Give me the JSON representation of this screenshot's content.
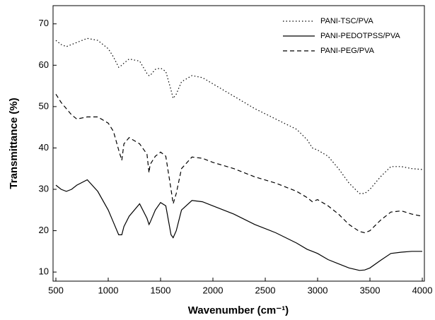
{
  "chart_data": {
    "type": "line",
    "x_label": "Wavenumber (cm⁻¹)",
    "y_label": "Transmittance (%)",
    "x": [
      500,
      550,
      600,
      650,
      700,
      800,
      900,
      1000,
      1050,
      1100,
      1130,
      1150,
      1200,
      1300,
      1370,
      1390,
      1400,
      1450,
      1500,
      1550,
      1600,
      1620,
      1650,
      1700,
      1800,
      1900,
      2000,
      2200,
      2400,
      2600,
      2800,
      2900,
      2950,
      3000,
      3100,
      3200,
      3300,
      3400,
      3450,
      3500,
      3600,
      3700,
      3800,
      3900,
      4000
    ],
    "series": [
      {
        "name": "PANI-TSC/PVA",
        "color": "#000000",
        "dash": "dotted",
        "values": [
          66,
          65,
          64.5,
          65,
          65.5,
          66.5,
          66,
          64,
          62,
          59.5,
          60,
          60.5,
          61.5,
          61,
          58,
          57.5,
          57.5,
          59,
          59.3,
          58.5,
          54,
          52,
          53,
          56,
          57.5,
          57,
          55.5,
          52.5,
          49.5,
          47,
          44.5,
          42,
          40,
          39.5,
          38,
          35,
          31.5,
          29,
          29,
          30,
          33,
          35.5,
          35.5,
          35,
          34.8
        ]
      },
      {
        "name": "PANI-PEDOTPSS/PVA",
        "color": "#000000",
        "dash": "solid",
        "values": [
          31,
          30,
          29.5,
          30,
          31,
          32.3,
          29.5,
          25,
          22,
          19,
          19,
          21,
          23.5,
          26.5,
          23,
          21.5,
          22,
          25,
          26.8,
          26,
          19,
          18.3,
          20,
          25,
          27.3,
          27,
          26,
          24,
          21.5,
          19.5,
          17,
          15.5,
          15,
          14.5,
          13,
          12,
          11,
          10.4,
          10.5,
          11,
          12.8,
          14.5,
          14.8,
          15,
          15
        ]
      },
      {
        "name": "PANI-PEG/PVA",
        "color": "#000000",
        "dash": "dashed",
        "values": [
          53,
          51,
          49.5,
          48,
          47,
          47.5,
          47.5,
          46,
          44,
          39.5,
          37,
          41,
          42.5,
          41,
          38.5,
          34,
          36,
          38,
          39,
          38,
          30,
          26.5,
          29,
          35,
          37.8,
          37.5,
          36.5,
          35,
          33,
          31.5,
          29.5,
          28,
          27,
          27.5,
          26,
          24,
          21.5,
          19.8,
          19.5,
          20,
          22.5,
          24.5,
          24.8,
          24,
          23.5
        ]
      }
    ],
    "xlim": [
      473,
      4020
    ],
    "xticks": [
      500,
      1000,
      1500,
      2000,
      2500,
      3000,
      3500,
      4000
    ],
    "ylim": [
      7.8,
      74.4
    ],
    "yticks": [
      10,
      20,
      30,
      40,
      50,
      60,
      70
    ],
    "grid": false,
    "legend": "upper right"
  }
}
